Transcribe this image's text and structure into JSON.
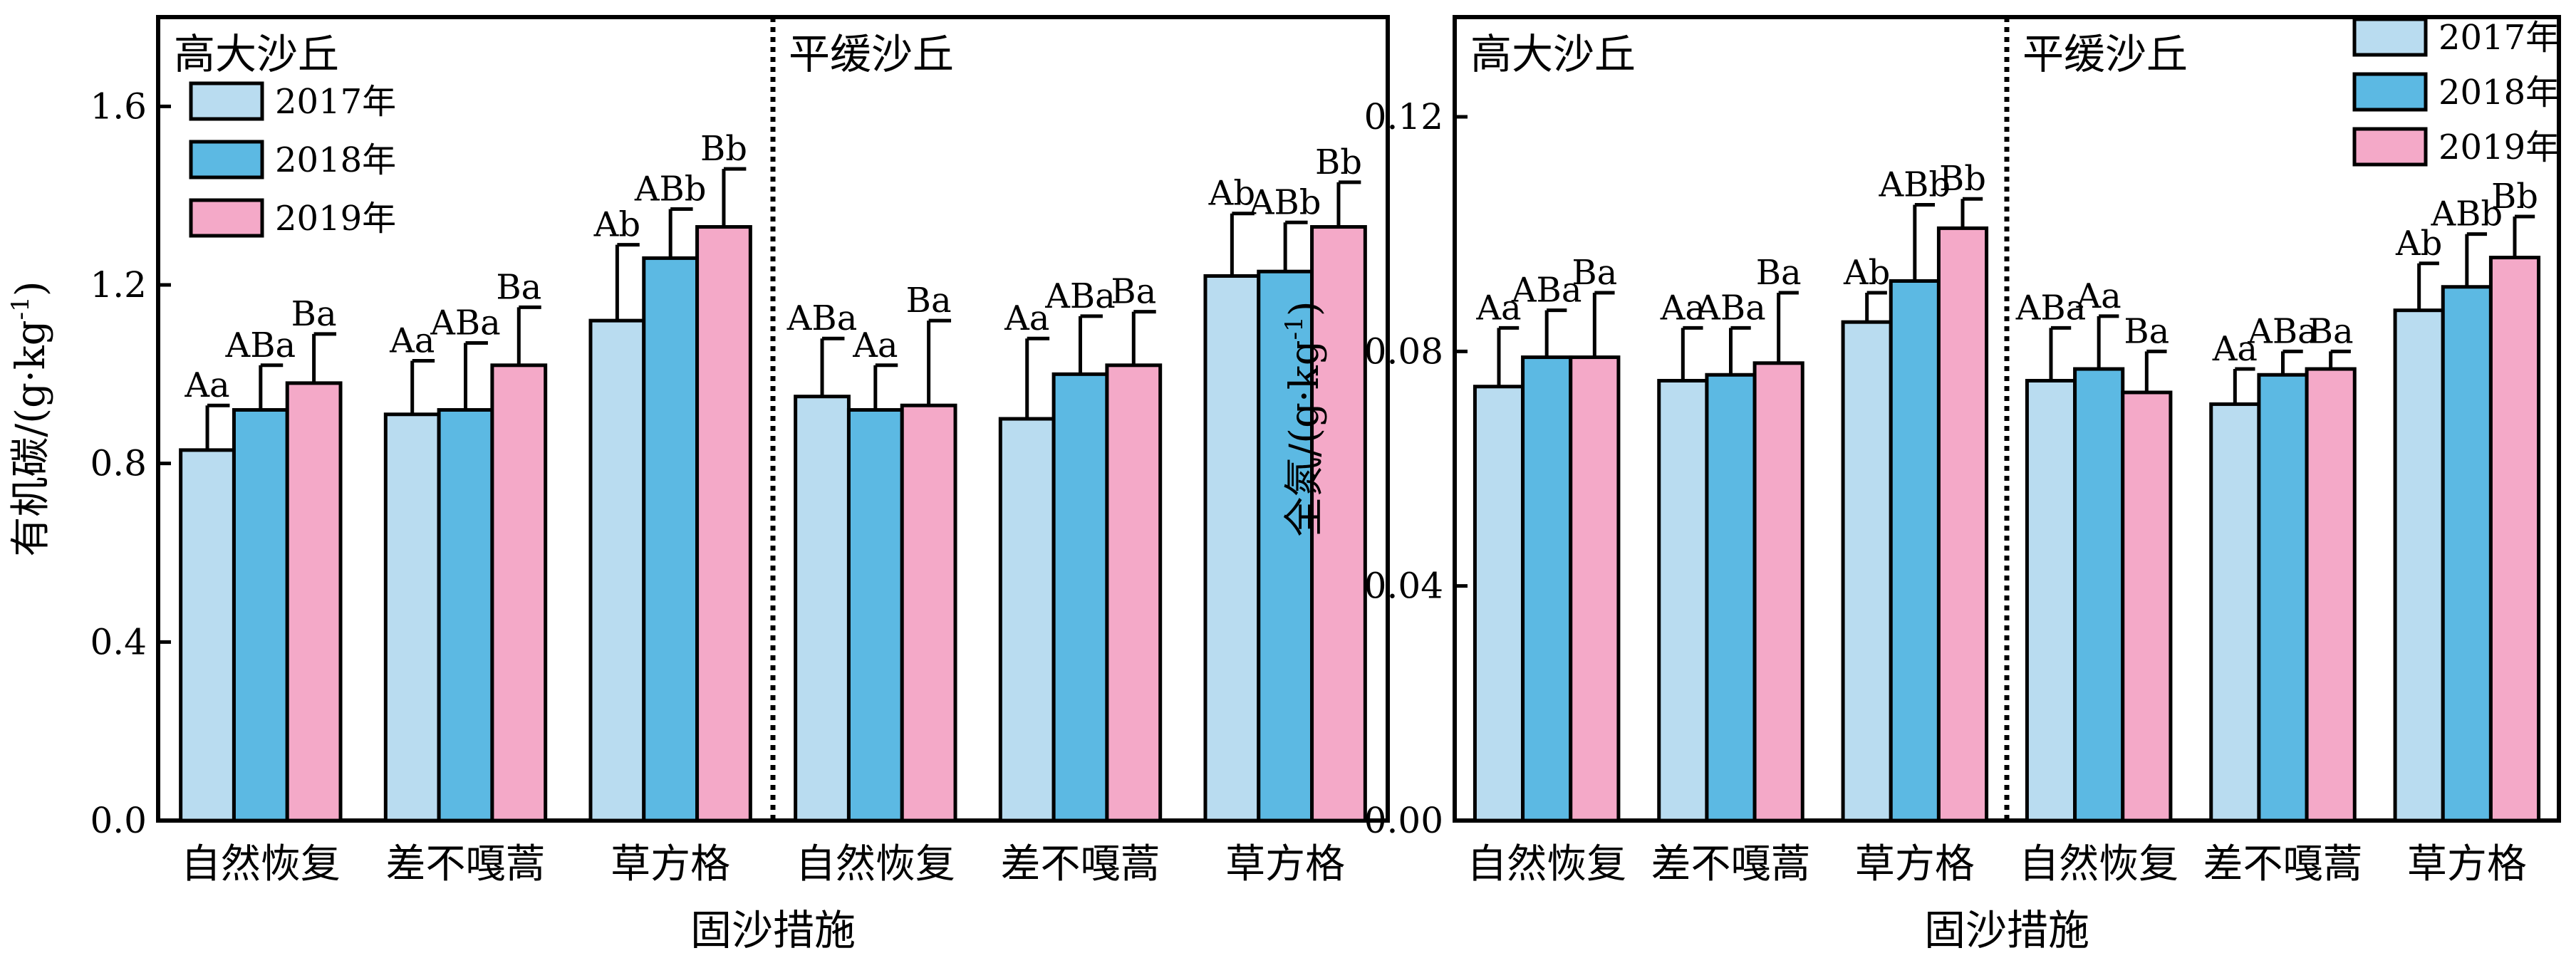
{
  "colors": {
    "2017": "#b9dcf0",
    "2018": "#5cb9e3",
    "2019": "#f4a9c8",
    "axis": "#000000"
  },
  "chart_data": [
    {
      "type": "bar",
      "ylabel": "有机碳/(g·kg",
      "ylabel_sup": "-1",
      "ylabel_close": ")",
      "xlabel": "固沙措施",
      "ylim": [
        0,
        1.8
      ],
      "yticks": [
        "0.0",
        "0.4",
        "0.8",
        "1.2",
        "1.6"
      ],
      "ytick_values": [
        0,
        0.4,
        0.8,
        1.2,
        1.6
      ],
      "groups": [
        "高大沙丘",
        "平缓沙丘"
      ],
      "categories": [
        "自然恢复",
        "差不嘎蒿",
        "草方格",
        "自然恢复",
        "差不嘎蒿",
        "草方格"
      ],
      "legend": [
        "2017年",
        "2018年",
        "2019年"
      ],
      "legend_position": "top-left",
      "series": [
        {
          "name": "2017年",
          "values": [
            0.83,
            0.91,
            1.12,
            0.95,
            0.9,
            1.22
          ],
          "errors": [
            0.1,
            0.12,
            0.17,
            0.13,
            0.18,
            0.14
          ],
          "labels": [
            "Aa",
            "Aa",
            "Ab",
            "ABa",
            "Aa",
            "Ab"
          ]
        },
        {
          "name": "2018年",
          "values": [
            0.92,
            0.92,
            1.26,
            0.92,
            1.0,
            1.23
          ],
          "errors": [
            0.1,
            0.15,
            0.11,
            0.1,
            0.13,
            0.11
          ],
          "labels": [
            "ABa",
            "ABa",
            "ABb",
            "Aa",
            "ABa",
            "ABb"
          ]
        },
        {
          "name": "2019年",
          "values": [
            0.98,
            1.02,
            1.33,
            0.93,
            1.02,
            1.33
          ],
          "errors": [
            0.11,
            0.13,
            0.13,
            0.19,
            0.12,
            0.1
          ],
          "labels": [
            "Ba",
            "Ba",
            "Bb",
            "Ba",
            "Ba",
            "Bb"
          ]
        }
      ]
    },
    {
      "type": "bar",
      "ylabel": "全氮/(g·kg",
      "ylabel_sup": "-1",
      "ylabel_close": ")",
      "xlabel": "固沙措施",
      "ylim": [
        0,
        0.137
      ],
      "yticks": [
        "0.00",
        "0.04",
        "0.08",
        "0.12"
      ],
      "ytick_values": [
        0,
        0.04,
        0.08,
        0.12
      ],
      "groups": [
        "高大沙丘",
        "平缓沙丘"
      ],
      "categories": [
        "自然恢复",
        "差不嘎蒿",
        "草方格",
        "自然恢复",
        "差不嘎蒿",
        "草方格"
      ],
      "legend": [
        "2017年",
        "2018年",
        "2019年"
      ],
      "legend_position": "top-right",
      "series": [
        {
          "name": "2017年",
          "values": [
            0.074,
            0.075,
            0.085,
            0.075,
            0.071,
            0.087
          ],
          "errors": [
            0.01,
            0.009,
            0.005,
            0.009,
            0.006,
            0.008
          ],
          "labels": [
            "Aa",
            "Aa",
            "Ab",
            "ABa",
            "Aa",
            "Ab"
          ]
        },
        {
          "name": "2018年",
          "values": [
            0.079,
            0.076,
            0.092,
            0.077,
            0.076,
            0.091
          ],
          "errors": [
            0.008,
            0.008,
            0.013,
            0.009,
            0.004,
            0.009
          ],
          "labels": [
            "ABa",
            "ABa",
            "ABb",
            "Aa",
            "ABa",
            "ABb"
          ]
        },
        {
          "name": "2019年",
          "values": [
            0.079,
            0.078,
            0.101,
            0.073,
            0.077,
            0.096
          ],
          "errors": [
            0.011,
            0.012,
            0.005,
            0.007,
            0.003,
            0.007
          ],
          "labels": [
            "Ba",
            "Ba",
            "Bb",
            "Ba",
            "Ba",
            "Bb"
          ]
        }
      ]
    }
  ]
}
